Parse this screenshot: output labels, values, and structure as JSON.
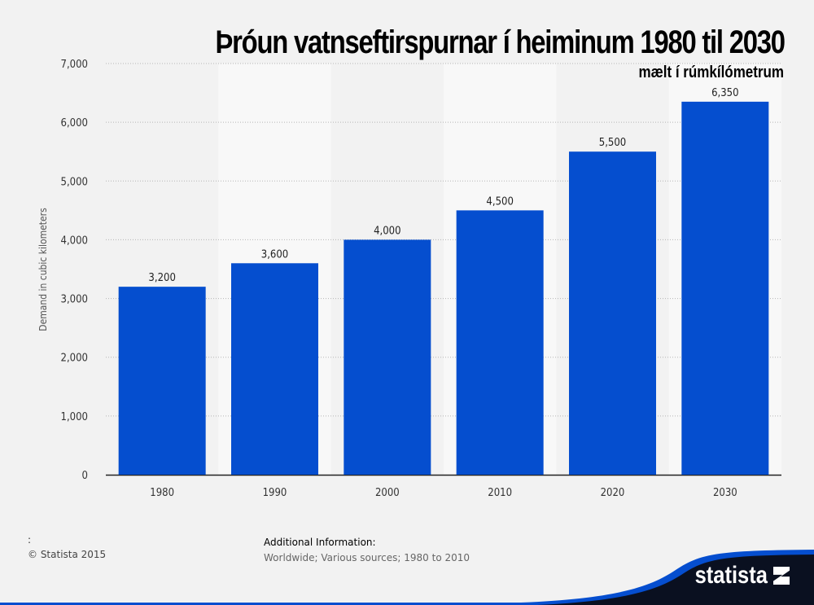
{
  "chart_data": {
    "type": "bar",
    "title": "Þróun vatnseftirspurnar í heiminum 1980 til 2030",
    "subtitle": "mælt í rúmkílómetrum",
    "categories": [
      "1980",
      "1990",
      "2000",
      "2010",
      "2020",
      "2030"
    ],
    "values": [
      3200,
      3600,
      4000,
      4500,
      5500,
      6350
    ],
    "value_labels": [
      "3,200",
      "3,600",
      "4,000",
      "4,500",
      "5,500",
      "6,350"
    ],
    "xlabel": "",
    "ylabel": "Demand in cubic kilometers",
    "ylim": [
      0,
      7000
    ],
    "yticks": [
      0,
      1000,
      2000,
      3000,
      4000,
      5000,
      6000,
      7000
    ],
    "ytick_labels": [
      "0",
      "1,000",
      "2,000",
      "3,000",
      "4,000",
      "5,000",
      "6,000",
      "7,000"
    ],
    "grid": true,
    "bar_color": "#054ecf"
  },
  "footer": {
    "colon": ":",
    "copyright": "© Statista 2015",
    "additional_title": "Additional Information:",
    "additional_text": "Worldwide; Various sources; 1980 to 2010",
    "logo": "statista"
  }
}
